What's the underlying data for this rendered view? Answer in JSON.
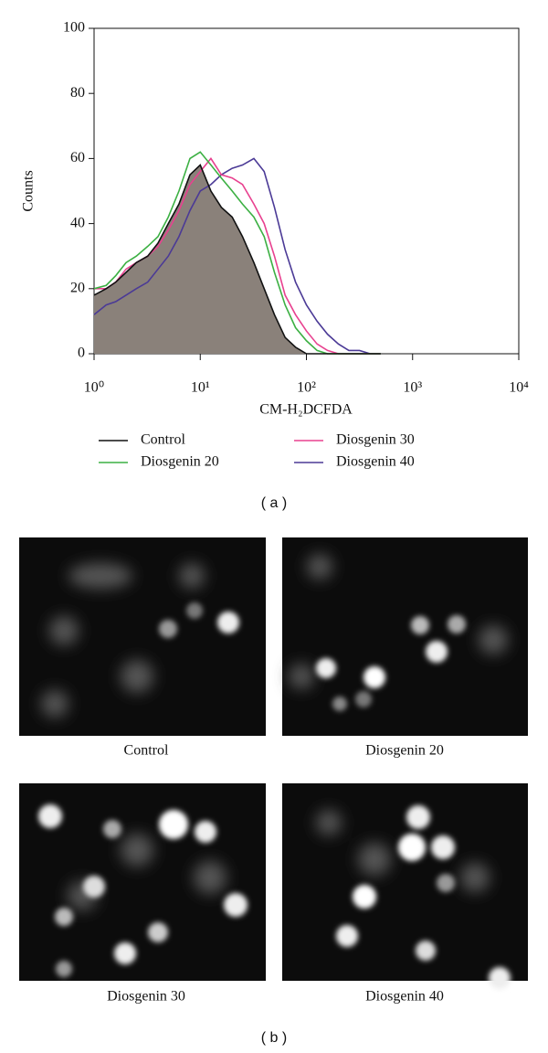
{
  "chart_data": {
    "type": "line",
    "xscale": "log",
    "x_label": "CM-H₂DCFDA",
    "y_label": "Counts",
    "xlim": [
      1,
      10000
    ],
    "ylim": [
      0,
      100
    ],
    "xticks": [
      {
        "value": 1,
        "label": "10⁰"
      },
      {
        "value": 10,
        "label": "10¹"
      },
      {
        "value": 100,
        "label": "10²"
      },
      {
        "value": 1000,
        "label": "10³"
      },
      {
        "value": 10000,
        "label": "10⁴"
      }
    ],
    "yticks": [
      0,
      20,
      40,
      60,
      80,
      100
    ],
    "x": [
      1,
      1.3,
      1.6,
      2,
      2.5,
      3.2,
      4,
      5,
      6.3,
      8,
      10,
      12.6,
      15.8,
      20,
      25,
      32,
      40,
      50,
      63,
      79,
      100,
      126,
      158,
      200,
      251,
      316,
      398,
      501
    ],
    "series": [
      {
        "name": "Control",
        "color": "#111111",
        "fill_color": "#8a817a",
        "values": [
          18,
          20,
          22,
          25,
          28,
          30,
          34,
          40,
          46,
          55,
          58,
          50,
          45,
          42,
          36,
          28,
          20,
          12,
          5,
          2,
          0,
          0,
          0,
          0,
          0,
          0,
          0,
          0
        ]
      },
      {
        "name": "Diosgenin 20",
        "color": "#3cb043",
        "values": [
          20,
          21,
          24,
          28,
          30,
          33,
          36,
          42,
          50,
          60,
          62,
          58,
          54,
          50,
          46,
          42,
          36,
          25,
          15,
          8,
          4,
          1,
          0,
          0,
          0,
          0,
          0,
          0
        ]
      },
      {
        "name": "Diosgenin 30",
        "color": "#e8418f",
        "values": [
          20,
          20,
          22,
          26,
          28,
          30,
          33,
          38,
          44,
          52,
          56,
          60,
          55,
          54,
          52,
          46,
          40,
          30,
          18,
          12,
          7,
          3,
          1,
          0,
          0,
          0,
          0,
          0
        ]
      },
      {
        "name": "Diosgenin 40",
        "color": "#4b3a96",
        "values": [
          12,
          15,
          16,
          18,
          20,
          22,
          26,
          30,
          36,
          44,
          50,
          52,
          55,
          57,
          58,
          60,
          56,
          45,
          32,
          22,
          15,
          10,
          6,
          3,
          1,
          1,
          0,
          0
        ]
      }
    ]
  },
  "figure": {
    "part_labels": [
      "( a )",
      "( b )"
    ],
    "panels": [
      {
        "caption": "Control"
      },
      {
        "caption": "Diosgenin 20"
      },
      {
        "caption": "Diosgenin 30"
      },
      {
        "caption": "Diosgenin 40"
      }
    ]
  }
}
